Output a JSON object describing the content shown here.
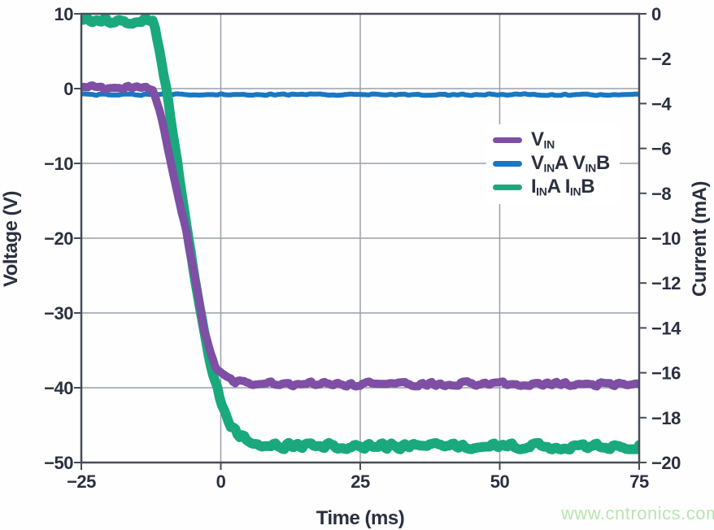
{
  "chart_data": {
    "type": "line",
    "title": "",
    "grid": true,
    "legend_position": "right-middle",
    "x_axis": {
      "label": "Time (ms)",
      "unit": "ms",
      "range": [
        -25,
        75
      ],
      "ticks": [
        -25,
        0,
        25,
        50,
        75
      ]
    },
    "left_axis": {
      "label": "Voltage (V)",
      "unit": "V",
      "range": [
        -50,
        10
      ],
      "ticks": [
        10,
        0,
        -10,
        -20,
        -30,
        -40,
        -50
      ]
    },
    "right_axis": {
      "label": "Current (mA)",
      "unit": "mA",
      "range": [
        -20,
        0
      ],
      "ticks": [
        0,
        -2,
        -4,
        -6,
        -8,
        -10,
        -12,
        -14,
        -16,
        -18,
        -20
      ]
    },
    "series": [
      {
        "name": "VIN",
        "axis": "left",
        "color": "#7e4fa4",
        "z": 3,
        "width": 10,
        "jitter": 3.4,
        "points": [
          [
            -25,
            0.2
          ],
          [
            -12.3,
            0.2
          ],
          [
            -11,
            -2.5
          ],
          [
            -10,
            -6
          ],
          [
            -9,
            -9.5
          ],
          [
            -8,
            -13
          ],
          [
            -7,
            -16.5
          ],
          [
            -6,
            -20
          ],
          [
            -5,
            -24
          ],
          [
            -4,
            -28
          ],
          [
            -3,
            -32
          ],
          [
            -2,
            -35
          ],
          [
            -1,
            -37
          ],
          [
            0,
            -38.2
          ],
          [
            1,
            -38.8
          ],
          [
            2.5,
            -39.2
          ],
          [
            4,
            -39.4
          ],
          [
            6,
            -39.5
          ],
          [
            10,
            -39.5
          ],
          [
            75,
            -39.5
          ]
        ]
      },
      {
        "name": "VINA VINB",
        "axis": "left",
        "color": "#1a77c0",
        "z": 1,
        "width": 6,
        "jitter": 1.1,
        "points": [
          [
            -25,
            -0.8
          ],
          [
            75,
            -0.8
          ]
        ]
      },
      {
        "name": "IINA IINB",
        "axis": "right",
        "color": "#19a97c",
        "z": 2,
        "width": 12,
        "jitter": 4.5,
        "points": [
          [
            -25,
            -0.3
          ],
          [
            -12.1,
            -0.3
          ],
          [
            -11,
            -1.5
          ],
          [
            -10,
            -3
          ],
          [
            -9,
            -4.7
          ],
          [
            -8,
            -6.3
          ],
          [
            -7,
            -7.9
          ],
          [
            -6,
            -9.6
          ],
          [
            -5,
            -11.2
          ],
          [
            -4,
            -12.7
          ],
          [
            -3,
            -14.1
          ],
          [
            -2,
            -15.4
          ],
          [
            -1,
            -16.4
          ],
          [
            0,
            -17.2
          ],
          [
            1,
            -17.9
          ],
          [
            2,
            -18.4
          ],
          [
            3,
            -18.7
          ],
          [
            4.5,
            -19
          ],
          [
            6,
            -19.1
          ],
          [
            9,
            -19.25
          ],
          [
            75,
            -19.3
          ]
        ]
      }
    ]
  },
  "legend": {
    "items": [
      {
        "color": "#7e4fa4",
        "segments": [
          {
            "text": "V"
          },
          {
            "text": "IN",
            "sub": true
          }
        ]
      },
      {
        "color": "#1a77c0",
        "segments": [
          {
            "text": "V"
          },
          {
            "text": "IN",
            "sub": true
          },
          {
            "text": "A V"
          },
          {
            "text": "IN",
            "sub": true
          },
          {
            "text": "B"
          }
        ]
      },
      {
        "color": "#19a97c",
        "segments": [
          {
            "text": "I"
          },
          {
            "text": "IN",
            "sub": true
          },
          {
            "text": "A I"
          },
          {
            "text": "IN",
            "sub": true
          },
          {
            "text": "B"
          }
        ]
      }
    ]
  },
  "watermark": "www.cntronics.com",
  "colors": {
    "grid": "#9aa0a8",
    "border": "#474c58",
    "text": "#2b3040",
    "background": "#ffffff",
    "watermark": "#b9e5af"
  }
}
